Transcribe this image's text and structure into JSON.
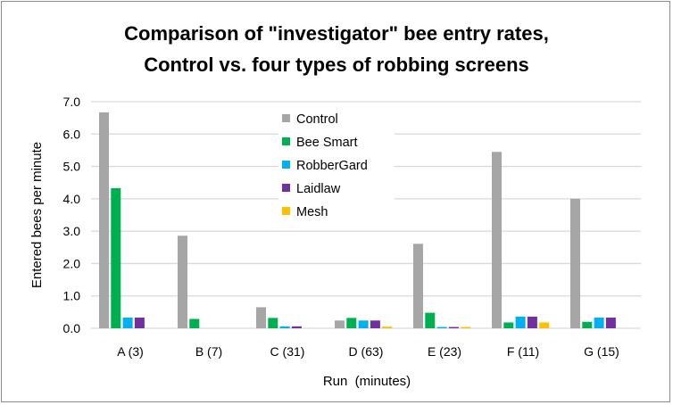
{
  "chart_data": {
    "type": "bar",
    "title": "Comparison of \"investigator\" bee entry rates,",
    "subtitle": "Control vs. four types of robbing screens",
    "xlabel": "Run  (minutes)",
    "ylabel": "Entered bees per minute",
    "ylim": [
      0,
      7
    ],
    "yticks": [
      "0.0",
      "1.0",
      "2.0",
      "3.0",
      "4.0",
      "5.0",
      "6.0",
      "7.0"
    ],
    "grid": true,
    "legend_position": "top-center",
    "categories": [
      "A (3)",
      "B (7)",
      "C (31)",
      "D (63)",
      "E (23)",
      "F (11)",
      "G (15)"
    ],
    "series": [
      {
        "name": "Control",
        "color": "#a6a6a6",
        "values": [
          6.67,
          2.86,
          0.65,
          0.24,
          2.61,
          5.45,
          4.0
        ]
      },
      {
        "name": "Bee Smart",
        "color": "#00b050",
        "values": [
          4.33,
          0.29,
          0.32,
          0.32,
          0.48,
          0.18,
          0.2
        ]
      },
      {
        "name": "RobberGard",
        "color": "#00b0f0",
        "values": [
          0.33,
          0,
          0.06,
          0.24,
          0.04,
          0.36,
          0.33
        ]
      },
      {
        "name": "Laidlaw",
        "color": "#7030a0",
        "values": [
          0.33,
          0,
          0.06,
          0.24,
          0.04,
          0.36,
          0.33
        ]
      },
      {
        "name": "Mesh",
        "color": "#ffc000",
        "values": [
          0,
          0,
          0,
          0.05,
          0.04,
          0.18,
          0
        ]
      }
    ]
  }
}
